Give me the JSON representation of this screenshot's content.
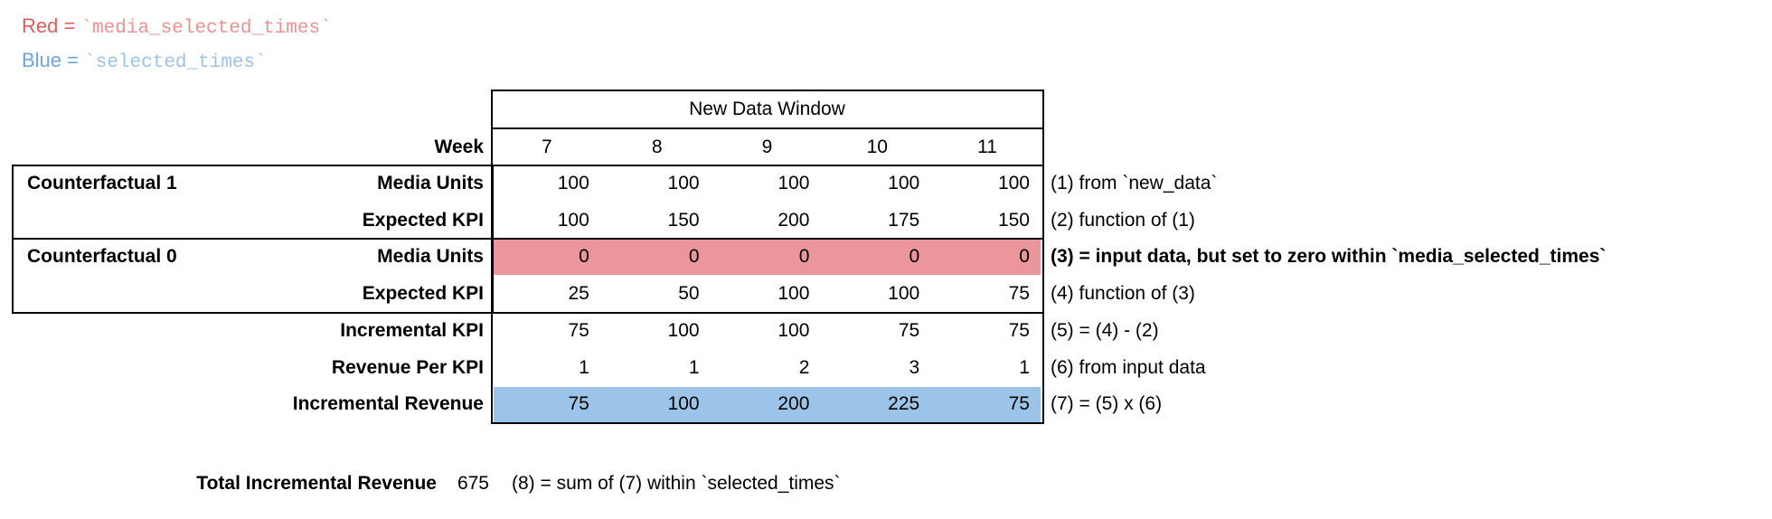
{
  "legend": {
    "red_prefix": "Red = ",
    "red_code": "`media_selected_times`",
    "blue_prefix": "Blue = ",
    "blue_code": "`selected_times`"
  },
  "colors": {
    "red_fill": "#ea969b",
    "blue_fill": "#9cc4e8",
    "legend_red": "#d95f5e",
    "legend_red_code": "#e89392",
    "legend_blue": "#6ba5dc",
    "legend_blue_code": "#9dc3e8",
    "border": "#000000"
  },
  "table": {
    "header": "New Data Window",
    "week_label": "Week",
    "weeks": [
      "7",
      "8",
      "9",
      "10",
      "11"
    ],
    "rows": [
      {
        "section": "Counterfactual 1",
        "label": "Media Units",
        "values": [
          "100",
          "100",
          "100",
          "100",
          "100"
        ],
        "fill": "none",
        "annotation": "(1) from `new_data`",
        "bold": false
      },
      {
        "section": "",
        "label": "Expected KPI",
        "values": [
          "100",
          "150",
          "200",
          "175",
          "150"
        ],
        "fill": "none",
        "annotation": "(2) function of (1)",
        "bold": false
      },
      {
        "section": "Counterfactual 0",
        "label": "Media Units",
        "values": [
          "0",
          "0",
          "0",
          "0",
          "0"
        ],
        "fill": "red_fill",
        "annotation": "(3) = input data, but set to zero within `media_selected_times`",
        "bold": true
      },
      {
        "section": "",
        "label": "Expected KPI",
        "values": [
          "25",
          "50",
          "100",
          "100",
          "75"
        ],
        "fill": "none",
        "annotation": "(4) function of (3)",
        "bold": false
      },
      {
        "section": "",
        "label": "Incremental KPI",
        "values": [
          "75",
          "100",
          "100",
          "75",
          "75"
        ],
        "fill": "none",
        "annotation": "(5) = (4) - (2)",
        "bold": false
      },
      {
        "section": "",
        "label": "Revenue Per KPI",
        "values": [
          "1",
          "1",
          "2",
          "3",
          "1"
        ],
        "fill": "none",
        "annotation": "(6) from input data",
        "bold": false
      },
      {
        "section": "",
        "label": "Incremental Revenue",
        "values": [
          "75",
          "100",
          "200",
          "225",
          "75"
        ],
        "fill": "blue_fill",
        "annotation": "(7) = (5) x (6)",
        "bold": false
      }
    ]
  },
  "summary": {
    "label": "Total Incremental Revenue",
    "value": "675",
    "annotation": "(8) = sum of (7) within `selected_times`"
  }
}
